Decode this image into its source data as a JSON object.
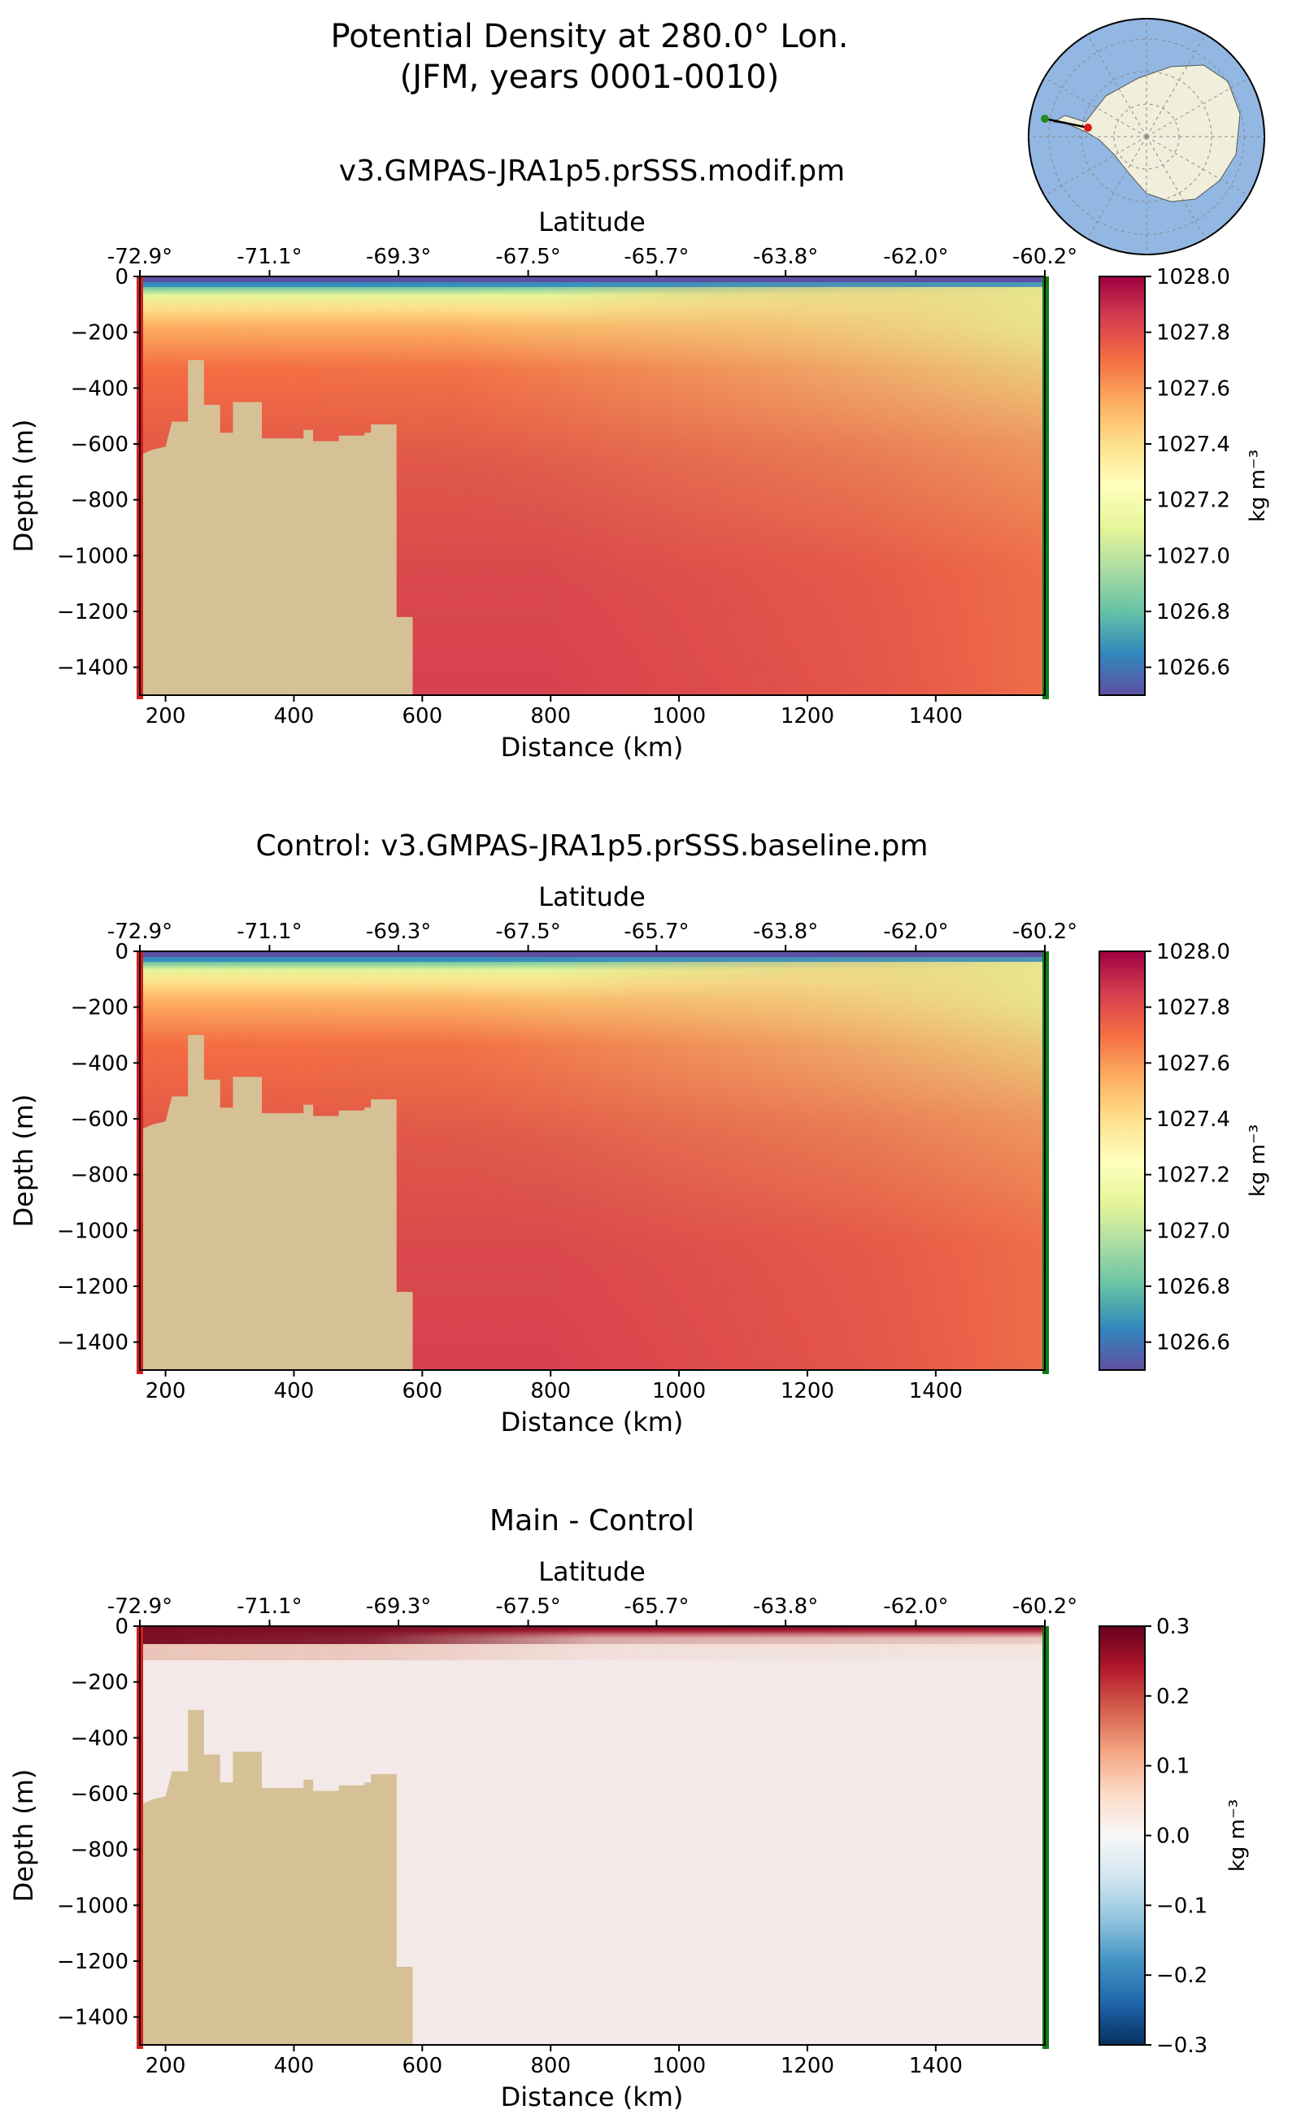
{
  "figure": {
    "title_line1": "Potential Density at 280.0° Lon.",
    "title_line2": "(JFM, years 0001-0010)",
    "colors": {
      "land": "#d6c196",
      "left_marker": "#d81b1b",
      "right_marker": "#157a15",
      "inset_ocean": "#93b7e3",
      "inset_land": "#efefdc"
    },
    "inset_map": {
      "name": "Antarctic polar stereographic inset",
      "transect_start_color": "#d81b1b",
      "transect_end_color": "#1f8a1f"
    }
  },
  "chart_data": [
    {
      "type": "heatmap",
      "title": "v3.GMPAS-JRA1p5.prSSS.modif.pm",
      "xlabel": "Distance (km)",
      "ylabel": "Depth (m)",
      "top_xlabel": "Latitude",
      "xlim": [
        160,
        1570
      ],
      "ylim": [
        -1500,
        0
      ],
      "x_ticks": [
        200,
        400,
        600,
        800,
        1000,
        1200,
        1400
      ],
      "x_tick_labels": [
        "200",
        "400",
        "600",
        "800",
        "1000",
        "1200",
        "1400"
      ],
      "y_ticks": [
        0,
        -200,
        -400,
        -600,
        -800,
        -1000,
        -1200,
        -1400
      ],
      "y_tick_labels": [
        "0",
        "−200",
        "−400",
        "−600",
        "−800",
        "−1000",
        "−1200",
        "−1400"
      ],
      "lat_ticks": [
        160,
        362,
        563,
        765,
        965,
        1166,
        1369,
        1570
      ],
      "lat_tick_labels": [
        "-72.9°",
        "-71.1°",
        "-69.3°",
        "-67.5°",
        "-65.7°",
        "-63.8°",
        "-62.0°",
        "-60.2°"
      ],
      "colorbar": {
        "colormap": "Spectral_r",
        "range": [
          1026.5,
          1028.0
        ],
        "ticks": [
          1028.0,
          1027.8,
          1027.6,
          1027.4,
          1027.2,
          1027.0,
          1026.8,
          1026.6
        ],
        "tick_labels": [
          "1028.0",
          "1027.8",
          "1027.6",
          "1027.4",
          "1027.2",
          "1027.0",
          "1026.8",
          "1026.6"
        ],
        "label": "kg m⁻³"
      }
    },
    {
      "type": "heatmap",
      "title": "Control: v3.GMPAS-JRA1p5.prSSS.baseline.pm",
      "xlabel": "Distance (km)",
      "ylabel": "Depth (m)",
      "top_xlabel": "Latitude",
      "xlim": [
        160,
        1570
      ],
      "ylim": [
        -1500,
        0
      ],
      "x_ticks": [
        200,
        400,
        600,
        800,
        1000,
        1200,
        1400
      ],
      "x_tick_labels": [
        "200",
        "400",
        "600",
        "800",
        "1000",
        "1200",
        "1400"
      ],
      "y_ticks": [
        0,
        -200,
        -400,
        -600,
        -800,
        -1000,
        -1200,
        -1400
      ],
      "y_tick_labels": [
        "0",
        "−200",
        "−400",
        "−600",
        "−800",
        "−1000",
        "−1200",
        "−1400"
      ],
      "lat_ticks": [
        160,
        362,
        563,
        765,
        965,
        1166,
        1369,
        1570
      ],
      "lat_tick_labels": [
        "-72.9°",
        "-71.1°",
        "-69.3°",
        "-67.5°",
        "-65.7°",
        "-63.8°",
        "-62.0°",
        "-60.2°"
      ],
      "colorbar": {
        "colormap": "Spectral_r",
        "range": [
          1026.5,
          1028.0
        ],
        "ticks": [
          1028.0,
          1027.8,
          1027.6,
          1027.4,
          1027.2,
          1027.0,
          1026.8,
          1026.6
        ],
        "tick_labels": [
          "1028.0",
          "1027.8",
          "1027.6",
          "1027.4",
          "1027.2",
          "1027.0",
          "1026.8",
          "1026.6"
        ],
        "label": "kg m⁻³"
      }
    },
    {
      "type": "heatmap",
      "title": "Main - Control",
      "xlabel": "Distance (km)",
      "ylabel": "Depth (m)",
      "top_xlabel": "Latitude",
      "xlim": [
        160,
        1570
      ],
      "ylim": [
        -1500,
        0
      ],
      "x_ticks": [
        200,
        400,
        600,
        800,
        1000,
        1200,
        1400
      ],
      "x_tick_labels": [
        "200",
        "400",
        "600",
        "800",
        "1000",
        "1200",
        "1400"
      ],
      "y_ticks": [
        0,
        -200,
        -400,
        -600,
        -800,
        -1000,
        -1200,
        -1400
      ],
      "y_tick_labels": [
        "0",
        "−200",
        "−400",
        "−600",
        "−800",
        "−1000",
        "−1200",
        "−1400"
      ],
      "lat_ticks": [
        160,
        362,
        563,
        765,
        965,
        1166,
        1369,
        1570
      ],
      "lat_tick_labels": [
        "-72.9°",
        "-71.1°",
        "-69.3°",
        "-67.5°",
        "-65.7°",
        "-63.8°",
        "-62.0°",
        "-60.2°"
      ],
      "colorbar": {
        "colormap": "RdBu_r",
        "range": [
          -0.3,
          0.3
        ],
        "ticks": [
          0.3,
          0.2,
          0.1,
          0.0,
          -0.1,
          -0.2,
          -0.3
        ],
        "tick_labels": [
          "0.3",
          "0.2",
          "0.1",
          "0.0",
          "−0.1",
          "−0.2",
          "−0.3"
        ],
        "label": "kg m⁻³"
      }
    }
  ]
}
